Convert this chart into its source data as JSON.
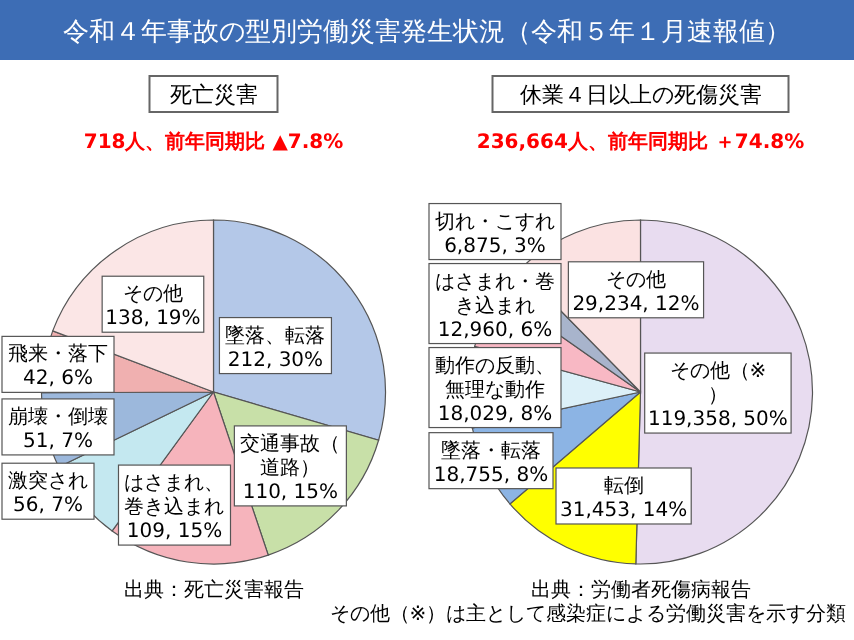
{
  "chart_data": [
    {
      "type": "other",
      "title": "令和４年事故の型別労働災害発生状況（令和５年１月速報値）"
    },
    {
      "type": "pie",
      "title": "死亡災害",
      "subtitle": "718人、前年同期比 ▲7.8%",
      "categories": [
        "墜落、転落",
        "交通事故（道路）",
        "はさまれ、巻き込まれ",
        "激突され",
        "崩壊・倒壊",
        "飛来・落下",
        "その他"
      ],
      "values": [
        212,
        110,
        109,
        56,
        51,
        42,
        138
      ],
      "value_labels": [
        "212, 30%",
        "110, 15%",
        "109, 15%",
        "56, 7%",
        "51, 7%",
        "42, 6%",
        "138, 19%"
      ],
      "colors": [
        "#b4c8e8",
        "#c8e0a8",
        "#f6b4bc",
        "#c4e8f0",
        "#9cb8dc",
        "#f0b0b0",
        "#fbe6e6"
      ],
      "annotations": [
        "出典：死亡災害報告"
      ]
    },
    {
      "type": "pie",
      "title": "休業４日以上の死傷災害",
      "subtitle": "236,664人、前年同期比 ＋74.8%",
      "categories": [
        "その他（※）",
        "転倒",
        "墜落・転落",
        "動作の反動、無理な動作",
        "はさまれ・巻き込まれ",
        "切れ・こすれ",
        "その他"
      ],
      "values": [
        119358,
        31453,
        18755,
        18029,
        12960,
        6875,
        29234
      ],
      "value_labels": [
        "119,358, 50%",
        "31,453, 14%",
        "18,755, 8%",
        "18,029, 8%",
        "12,960, 6%",
        "6,875, 3%",
        "29,234, 12%"
      ],
      "colors": [
        "#e8dcf0",
        "#ffff00",
        "#8cb4e4",
        "#dcf0f8",
        "#f8b8c4",
        "#a8b4cc",
        "#fbe2e2"
      ],
      "annotations": [
        "出典：労働者死傷病報告",
        "その他（※）は主として感染症による労働災害を示す分類"
      ]
    }
  ]
}
